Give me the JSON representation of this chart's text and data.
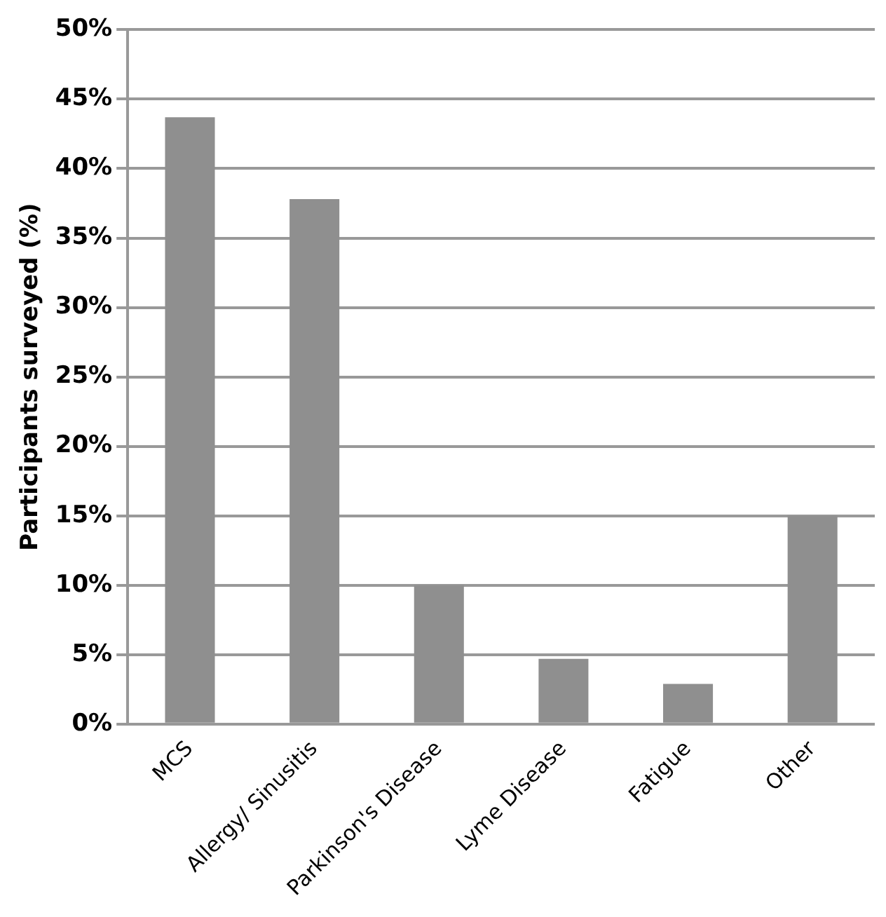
{
  "chart_data": {
    "type": "bar",
    "ylabel": "Participants surveyed (%)",
    "categories": [
      "MCS",
      "Allergy/ Sinusitis",
      "Parkinson's Disease",
      "Lyme Disease",
      "Fatigue",
      "Other"
    ],
    "values": [
      43.7,
      37.8,
      10,
      4.7,
      2.9,
      15
    ],
    "color": "#8f8f8f",
    "ylim": [
      0,
      50
    ],
    "yticks": [
      {
        "value": 0,
        "label": "0%"
      },
      {
        "value": 5,
        "label": "5%"
      },
      {
        "value": 10,
        "label": "10%"
      },
      {
        "value": 15,
        "label": "15%"
      },
      {
        "value": 20,
        "label": "20%"
      },
      {
        "value": 25,
        "label": "25%"
      },
      {
        "value": 30,
        "label": "30%"
      },
      {
        "value": 35,
        "label": "35%"
      },
      {
        "value": 40,
        "label": "40%"
      },
      {
        "value": 45,
        "label": "45%"
      },
      {
        "value": 50,
        "label": "50%"
      }
    ],
    "grid": "y",
    "legend": false
  }
}
